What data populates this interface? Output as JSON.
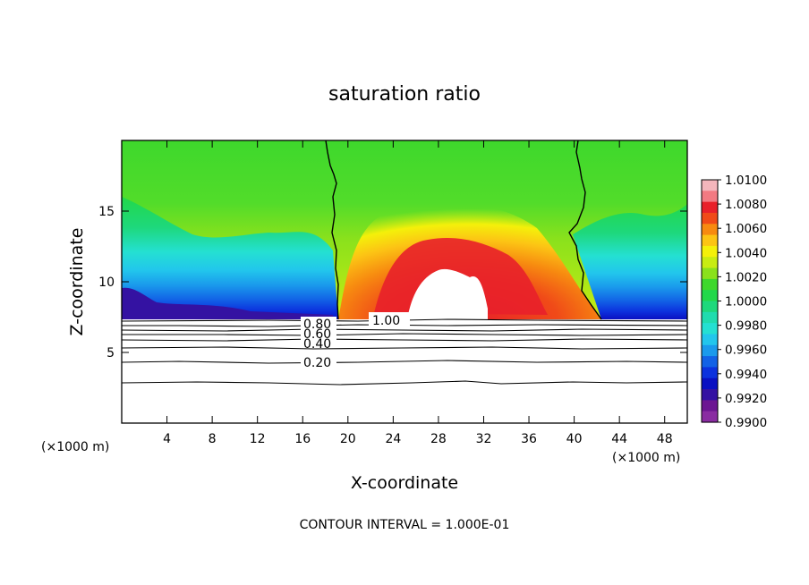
{
  "chart_data": {
    "type": "contour",
    "title": "saturation ratio",
    "xlabel": "X-coordinate",
    "ylabel": "Z-coordinate",
    "x_unit_left": "(×1000 m)",
    "x_unit_right": "(×1000 m)",
    "xlim": [
      0,
      50
    ],
    "ylim": [
      0,
      20
    ],
    "x_ticks": [
      4,
      8,
      12,
      16,
      20,
      24,
      28,
      32,
      36,
      40,
      44,
      48
    ],
    "y_ticks": [
      5,
      10,
      15
    ],
    "colorbar": {
      "levels": [
        "1.0100",
        "1.0080",
        "1.0060",
        "1.0040",
        "1.0020",
        "1.0000",
        "0.9980",
        "0.9960",
        "0.9940",
        "0.9920",
        "0.9900"
      ],
      "colors": [
        "#f4b6bc",
        "#f27a82",
        "#e8202a",
        "#f04a18",
        "#f78a10",
        "#fcc414",
        "#f4f00a",
        "#c8ec12",
        "#8ae11c",
        "#3ed82c",
        "#22d84a",
        "#1ed87c",
        "#20dcae",
        "#24e0d2",
        "#22c6ec",
        "#1a9aec",
        "#1262e6",
        "#0c32de",
        "#0a10c2",
        "#3412a2",
        "#6c1692",
        "#8a2ca2"
      ]
    },
    "contour_labels": [
      "1.00",
      "0.80",
      "0.60",
      "0.40",
      "0.20"
    ],
    "footer": "CONTOUR INTERVAL = 1.000E-01"
  }
}
